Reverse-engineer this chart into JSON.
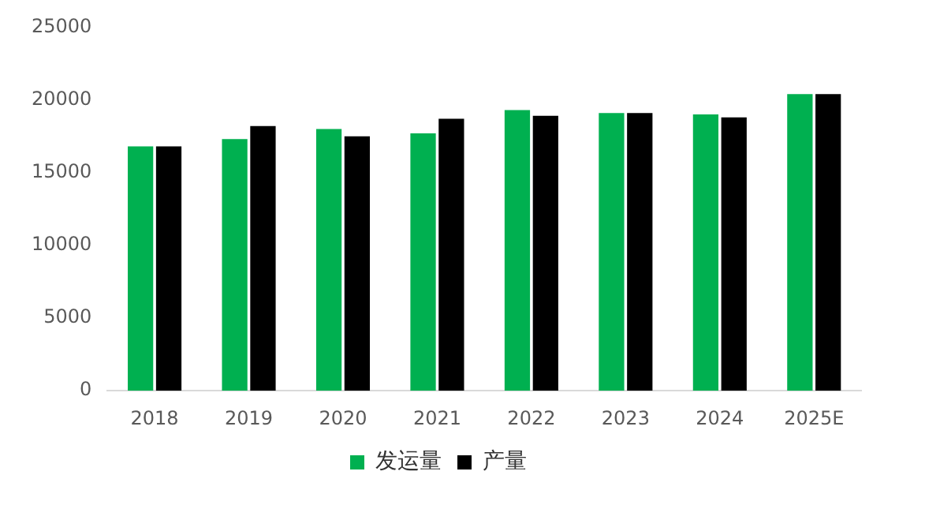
{
  "chart_data": {
    "type": "bar",
    "categories": [
      "2018",
      "2019",
      "2020",
      "2021",
      "2022",
      "2023",
      "2024",
      "2025E"
    ],
    "series": [
      {
        "name": "发运量",
        "color": "#00b050",
        "values": [
          16800,
          17300,
          18000,
          17700,
          19300,
          19100,
          19000,
          20400
        ]
      },
      {
        "name": "产量",
        "color": "#000000",
        "values": [
          16800,
          18200,
          17500,
          18700,
          18900,
          19100,
          18800,
          20400
        ]
      }
    ],
    "ylim": [
      0,
      25000
    ],
    "yticks": [
      0,
      5000,
      10000,
      15000,
      20000,
      25000
    ],
    "grid": false,
    "legend": "bottom"
  }
}
